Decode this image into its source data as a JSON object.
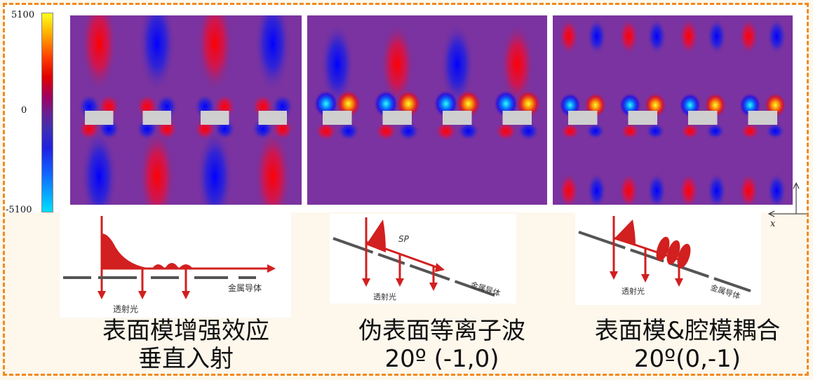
{
  "colorbar": {
    "max_label": "5100",
    "mid_label": "0",
    "min_label": "-5100"
  },
  "axis_label": "x",
  "schematics": [
    {
      "medium_label": "金属导体",
      "transmitted_label": "透射光",
      "wave_label": ""
    },
    {
      "medium_label": "金属导体",
      "transmitted_label": "透射光",
      "wave_label": "SP"
    },
    {
      "medium_label": "金属导体",
      "transmitted_label": "透射光",
      "wave_label": ""
    }
  ],
  "captions": [
    {
      "line1": "表面模增强效应",
      "line2": "垂直入射"
    },
    {
      "line1": "伪表面等离子波",
      "line2": "20º (-1,0)"
    },
    {
      "line1": "表面模&腔模耦合",
      "line2": "20º(0,-1)"
    }
  ],
  "colors": {
    "frame": "#f08a1e",
    "positive": "#ff0000",
    "negative": "#0000ff",
    "background_field": "#7a33a0",
    "arrow": "#d21f1f"
  }
}
